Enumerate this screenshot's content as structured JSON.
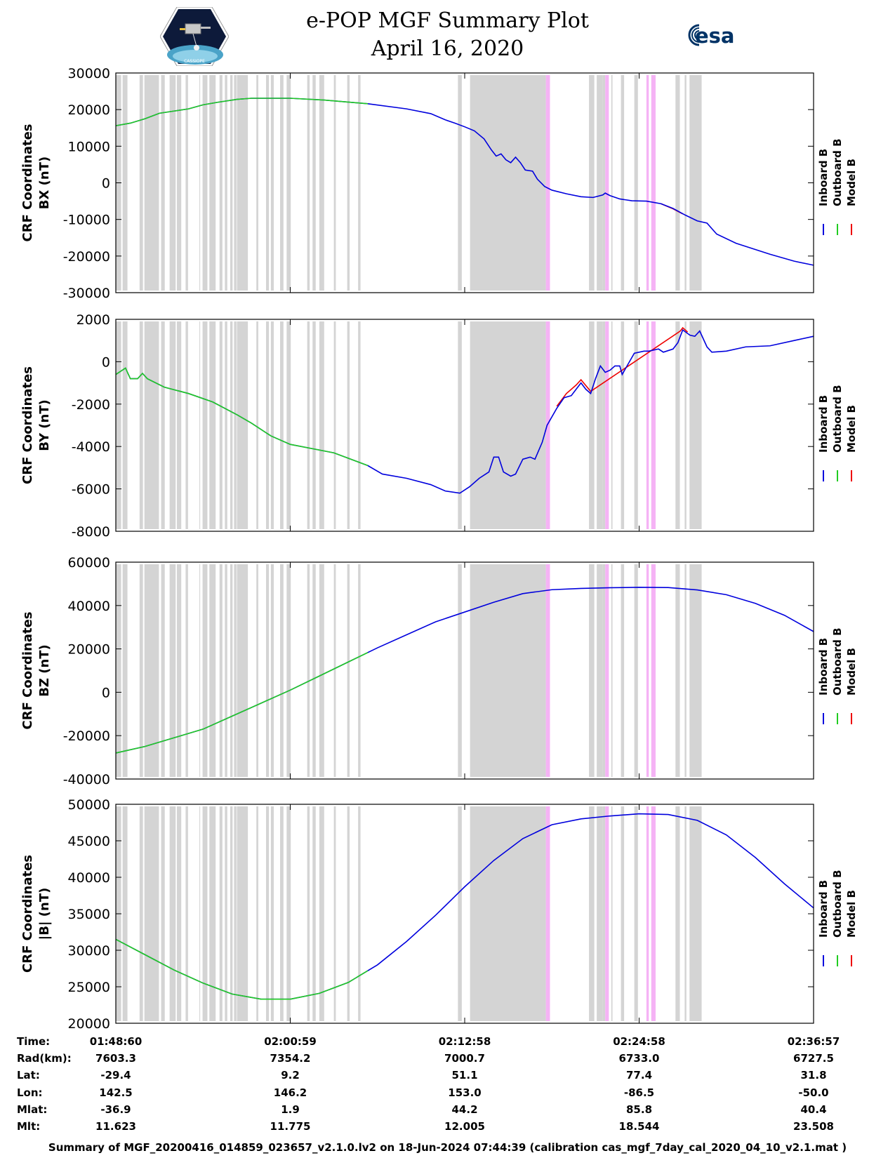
{
  "header": {
    "title_line1": "e-POP MGF Summary Plot",
    "title_line2": "April 16, 2020",
    "logo_left_text": "CASSIOPE",
    "logo_right_text": "esa"
  },
  "colors": {
    "inboard": "#0000dd",
    "outboard": "#22cc22",
    "model": "#ee0000",
    "gray_band": "#d4d4d4",
    "pink_band": "#f5b3f5"
  },
  "chart_data": {
    "type": "line",
    "x_range_sec": [
      0,
      2880
    ],
    "x_tick_sec": [
      0,
      720,
      1440,
      2160,
      2880
    ],
    "gray_bands_sec": [
      [
        0,
        22
      ],
      [
        28,
        48
      ],
      [
        98,
        112
      ],
      [
        118,
        178
      ],
      [
        187,
        202
      ],
      [
        222,
        247
      ],
      [
        252,
        270
      ],
      [
        288,
        298
      ],
      [
        345,
        348
      ],
      [
        358,
        378
      ],
      [
        386,
        412
      ],
      [
        428,
        440
      ],
      [
        450,
        460
      ],
      [
        472,
        482
      ],
      [
        488,
        498
      ],
      [
        500,
        545
      ],
      [
        580,
        588
      ],
      [
        620,
        632
      ],
      [
        640,
        652
      ],
      [
        678,
        692
      ],
      [
        705,
        722
      ],
      [
        790,
        800
      ],
      [
        812,
        825
      ],
      [
        840,
        860
      ],
      [
        900,
        908
      ],
      [
        955,
        965
      ],
      [
        1000,
        1010
      ],
      [
        1412,
        1428
      ],
      [
        1462,
        1775
      ],
      [
        1953,
        1975
      ],
      [
        1985,
        2010
      ],
      [
        2010,
        2020
      ],
      [
        2045,
        2050
      ],
      [
        2085,
        2098
      ],
      [
        2140,
        2155
      ],
      [
        2310,
        2328
      ],
      [
        2348,
        2355
      ],
      [
        2368,
        2418
      ]
    ],
    "pink_bands_sec": [
      [
        1775,
        1792
      ],
      [
        2020,
        2035
      ],
      [
        2190,
        2200
      ],
      [
        2210,
        2228
      ]
    ],
    "outboard_until_sec": 1040,
    "legend": [
      "Inboard B",
      "Outboard B",
      "Model B"
    ],
    "time_rows": {
      "labels": [
        "Time:",
        "Rad(km):",
        "Lat:",
        "Lon:",
        "Mlat:",
        "Mlt:"
      ],
      "columns": [
        [
          "01:48:60",
          "7603.3",
          "-29.4",
          "142.5",
          "-36.9",
          "11.623"
        ],
        [
          "02:00:59",
          "7354.2",
          "9.2",
          "146.2",
          "1.9",
          "11.775"
        ],
        [
          "02:12:58",
          "7000.7",
          "51.1",
          "153.0",
          "44.2",
          "12.005"
        ],
        [
          "02:24:58",
          "6733.0",
          "77.4",
          "-86.5",
          "85.8",
          "18.544"
        ],
        [
          "02:36:57",
          "6727.5",
          "31.8",
          "-50.0",
          "40.4",
          "23.508"
        ]
      ]
    },
    "panels": [
      {
        "ylabel1": "CRF Coordinates",
        "ylabel2": "BX (nT)",
        "ylim": [
          -30000,
          30000
        ],
        "yticks": [
          -30000,
          -20000,
          -10000,
          0,
          10000,
          20000,
          30000
        ],
        "ytick_labels": [
          "-30000",
          "-20000",
          "-10000",
          "0",
          "10000",
          "20000",
          "30000"
        ],
        "series": [
          [
            0,
            15600
          ],
          [
            60,
            16300
          ],
          [
            120,
            17500
          ],
          [
            180,
            19000
          ],
          [
            240,
            19600
          ],
          [
            300,
            20200
          ],
          [
            360,
            21300
          ],
          [
            420,
            22000
          ],
          [
            500,
            22800
          ],
          [
            560,
            23100
          ],
          [
            720,
            23100
          ],
          [
            860,
            22600
          ],
          [
            1040,
            21600
          ],
          [
            1200,
            20200
          ],
          [
            1300,
            18900
          ],
          [
            1360,
            17200
          ],
          [
            1400,
            16300
          ],
          [
            1440,
            15300
          ],
          [
            1480,
            14200
          ],
          [
            1520,
            12000
          ],
          [
            1550,
            9000
          ],
          [
            1570,
            7300
          ],
          [
            1590,
            7900
          ],
          [
            1610,
            6300
          ],
          [
            1630,
            5500
          ],
          [
            1650,
            7000
          ],
          [
            1670,
            5500
          ],
          [
            1690,
            3500
          ],
          [
            1720,
            3200
          ],
          [
            1740,
            1000
          ],
          [
            1770,
            -1000
          ],
          [
            1800,
            -2000
          ],
          [
            1860,
            -3000
          ],
          [
            1920,
            -3800
          ],
          [
            1970,
            -4000
          ],
          [
            2010,
            -3300
          ],
          [
            2020,
            -2800
          ],
          [
            2040,
            -3500
          ],
          [
            2080,
            -4400
          ],
          [
            2130,
            -4900
          ],
          [
            2190,
            -5000
          ],
          [
            2250,
            -5700
          ],
          [
            2300,
            -7000
          ],
          [
            2350,
            -8800
          ],
          [
            2400,
            -10400
          ],
          [
            2440,
            -11000
          ],
          [
            2480,
            -14000
          ],
          [
            2560,
            -16500
          ],
          [
            2700,
            -19500
          ],
          [
            2800,
            -21400
          ],
          [
            2880,
            -22500
          ]
        ],
        "model_dev": [
          [
            2250,
            -5700
          ],
          [
            2300,
            -7100
          ],
          [
            2340,
            -8500
          ]
        ]
      },
      {
        "ylabel1": "CRF Coordinates",
        "ylabel2": "BY (nT)",
        "ylim": [
          -8000,
          2000
        ],
        "yticks": [
          -8000,
          -6000,
          -4000,
          -2000,
          0,
          2000
        ],
        "ytick_labels": [
          "-8000",
          "-6000",
          "-4000",
          "-2000",
          "0",
          "2000"
        ],
        "series": [
          [
            0,
            -600
          ],
          [
            40,
            -300
          ],
          [
            60,
            -800
          ],
          [
            90,
            -800
          ],
          [
            110,
            -550
          ],
          [
            130,
            -800
          ],
          [
            200,
            -1200
          ],
          [
            300,
            -1500
          ],
          [
            400,
            -1900
          ],
          [
            500,
            -2500
          ],
          [
            560,
            -2900
          ],
          [
            640,
            -3500
          ],
          [
            720,
            -3900
          ],
          [
            900,
            -4300
          ],
          [
            1040,
            -4900
          ],
          [
            1100,
            -5300
          ],
          [
            1200,
            -5500
          ],
          [
            1300,
            -5800
          ],
          [
            1360,
            -6100
          ],
          [
            1420,
            -6200
          ],
          [
            1460,
            -5900
          ],
          [
            1500,
            -5500
          ],
          [
            1540,
            -5200
          ],
          [
            1560,
            -4500
          ],
          [
            1580,
            -4500
          ],
          [
            1600,
            -5200
          ],
          [
            1630,
            -5400
          ],
          [
            1650,
            -5300
          ],
          [
            1680,
            -4600
          ],
          [
            1710,
            -4500
          ],
          [
            1730,
            -4600
          ],
          [
            1760,
            -3800
          ],
          [
            1780,
            -3000
          ],
          [
            1820,
            -2200
          ],
          [
            1850,
            -1700
          ],
          [
            1880,
            -1600
          ],
          [
            1900,
            -1300
          ],
          [
            1920,
            -1000
          ],
          [
            1940,
            -1300
          ],
          [
            1960,
            -1500
          ],
          [
            1980,
            -800
          ],
          [
            2000,
            -200
          ],
          [
            2020,
            -500
          ],
          [
            2040,
            -400
          ],
          [
            2060,
            -200
          ],
          [
            2080,
            -200
          ],
          [
            2090,
            -600
          ],
          [
            2100,
            -400
          ],
          [
            2140,
            400
          ],
          [
            2180,
            500
          ],
          [
            2200,
            500
          ],
          [
            2240,
            600
          ],
          [
            2260,
            450
          ],
          [
            2300,
            600
          ],
          [
            2320,
            900
          ],
          [
            2340,
            1500
          ],
          [
            2370,
            1250
          ],
          [
            2390,
            1200
          ],
          [
            2410,
            1450
          ],
          [
            2440,
            700
          ],
          [
            2460,
            450
          ],
          [
            2520,
            500
          ],
          [
            2600,
            700
          ],
          [
            2700,
            750
          ],
          [
            2800,
            1000
          ],
          [
            2880,
            1200
          ]
        ],
        "model_dev": [
          [
            1820,
            -2100
          ],
          [
            1860,
            -1500
          ],
          [
            1900,
            -1100
          ],
          [
            1920,
            -850
          ],
          [
            1960,
            -1400
          ],
          [
            2330,
            1450
          ],
          [
            2340,
            1600
          ],
          [
            2360,
            1400
          ]
        ]
      },
      {
        "ylabel1": "CRF Coordinates",
        "ylabel2": "BZ (nT)",
        "ylim": [
          -40000,
          60000
        ],
        "yticks": [
          -40000,
          -20000,
          0,
          20000,
          40000,
          60000
        ],
        "ytick_labels": [
          "-40000",
          "-20000",
          "0",
          "20000",
          "40000",
          "60000"
        ],
        "series": [
          [
            0,
            -28000
          ],
          [
            120,
            -25000
          ],
          [
            240,
            -21000
          ],
          [
            360,
            -17000
          ],
          [
            480,
            -11000
          ],
          [
            600,
            -5000
          ],
          [
            720,
            1000
          ],
          [
            840,
            7500
          ],
          [
            960,
            14000
          ],
          [
            1080,
            20500
          ],
          [
            1200,
            26500
          ],
          [
            1320,
            32500
          ],
          [
            1440,
            37000
          ],
          [
            1560,
            41500
          ],
          [
            1680,
            45500
          ],
          [
            1800,
            47300
          ],
          [
            1920,
            47900
          ],
          [
            2040,
            48200
          ],
          [
            2160,
            48400
          ],
          [
            2280,
            48300
          ],
          [
            2400,
            47200
          ],
          [
            2520,
            45000
          ],
          [
            2640,
            41000
          ],
          [
            2760,
            35500
          ],
          [
            2880,
            28000
          ]
        ],
        "model_dev": []
      },
      {
        "ylabel1": "CRF Coordinates",
        "ylabel2": "|B| (nT)",
        "ylim": [
          20000,
          50000
        ],
        "yticks": [
          20000,
          25000,
          30000,
          35000,
          40000,
          45000,
          50000
        ],
        "ytick_labels": [
          "20000",
          "25000",
          "30000",
          "35000",
          "40000",
          "45000",
          "50000"
        ],
        "series": [
          [
            0,
            31500
          ],
          [
            120,
            29400
          ],
          [
            240,
            27300
          ],
          [
            360,
            25500
          ],
          [
            480,
            24000
          ],
          [
            600,
            23300
          ],
          [
            720,
            23300
          ],
          [
            840,
            24100
          ],
          [
            960,
            25600
          ],
          [
            1080,
            28000
          ],
          [
            1200,
            31200
          ],
          [
            1320,
            34800
          ],
          [
            1440,
            38700
          ],
          [
            1560,
            42300
          ],
          [
            1680,
            45300
          ],
          [
            1800,
            47200
          ],
          [
            1920,
            48000
          ],
          [
            2040,
            48400
          ],
          [
            2160,
            48700
          ],
          [
            2280,
            48600
          ],
          [
            2400,
            47800
          ],
          [
            2520,
            45800
          ],
          [
            2640,
            42700
          ],
          [
            2760,
            39100
          ],
          [
            2880,
            35800
          ]
        ],
        "model_dev": []
      }
    ]
  },
  "footer": {
    "text": "Summary of MGF_20200416_014859_023657_v2.1.0.lv2 on 18-Jun-2024 07:44:39 (calibration cas_mgf_7day_cal_2020_04_10_v2.1.mat )"
  }
}
